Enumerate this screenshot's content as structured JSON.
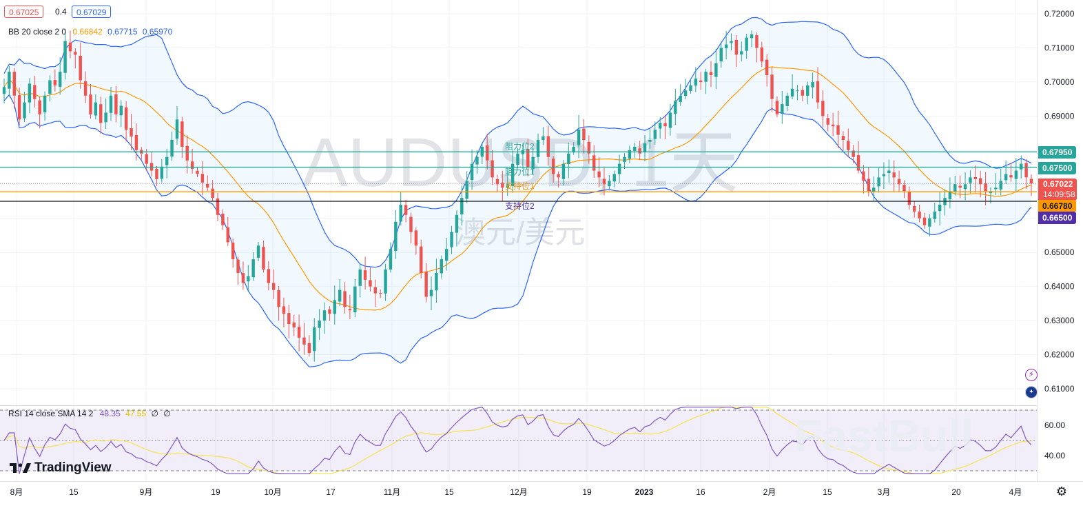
{
  "header": {
    "bid": "0.67025",
    "spread": "0.4",
    "ask": "0.67029",
    "bb_label": "BB 20 close 2 0",
    "bb_basis": "0.66842",
    "bb_upper": "0.67715",
    "bb_lower": "0.65970",
    "rsi_label": "RSI 14 close SMA 14 2",
    "rsi_value": "48.35",
    "rsi_sma": "47.55",
    "rsi_extra1": "∅",
    "rsi_extra2": "∅"
  },
  "watermark": {
    "symbol": "AUDUSD, 1天",
    "name": "澳元/美元",
    "brand": "FastBull",
    "logo_text": "TradingView"
  },
  "price_tags": {
    "level_6795": "0.67950",
    "level_6750": "0.67500",
    "last_price": "0.67022",
    "countdown": "14:09:58",
    "level_6678": "0.66780",
    "level_6650": "0.66500"
  },
  "level_labels": {
    "r2": "阻力位2",
    "r1": "阻力位1",
    "s1": "支持位1",
    "s2": "支持位2"
  },
  "colors": {
    "up": "#26a69a",
    "down": "#ef5350",
    "band": "#2962ff",
    "basis": "#ff9800",
    "level_cyan": "#26a69a",
    "rsi": "#7e57c2",
    "rsi_sma": "#f5e35b"
  },
  "chart_data": [
    {
      "type": "candlestick",
      "title": "AUDUSD, 1天",
      "subtitle": "澳元/美元",
      "x_ticks": [
        "8月",
        "15",
        "9月",
        "19",
        "10月",
        "17",
        "11月",
        "15",
        "12月",
        "19",
        "2023",
        "16",
        "2月",
        "15",
        "3月",
        "20",
        "4月"
      ],
      "y_ticks": [
        "0.72000",
        "0.71000",
        "0.70000",
        "0.69000",
        "0.68000",
        "0.67000",
        "0.66000",
        "0.65000",
        "0.64000",
        "0.63000",
        "0.62000",
        "0.61000"
      ],
      "ylim": [
        0.6055,
        0.7215
      ],
      "horizontal_levels": [
        {
          "value": 0.6795,
          "label": "阻力位2"
        },
        {
          "value": 0.675,
          "label": "阻力位1"
        },
        {
          "value": 0.6678,
          "label": "支持位1"
        },
        {
          "value": 0.665,
          "label": "支持位2"
        }
      ],
      "close_series": [
        0.6985,
        0.703,
        0.696,
        0.689,
        0.694,
        0.6995,
        0.695,
        0.6905,
        0.696,
        0.7005,
        0.699,
        0.703,
        0.712,
        0.709,
        0.708,
        0.7005,
        0.696,
        0.6905,
        0.694,
        0.688,
        0.691,
        0.696,
        0.6905,
        0.693,
        0.686,
        0.684,
        0.68,
        0.679,
        0.676,
        0.674,
        0.6715,
        0.675,
        0.678,
        0.683,
        0.689,
        0.681,
        0.677,
        0.6745,
        0.673,
        0.6705,
        0.669,
        0.666,
        0.661,
        0.658,
        0.653,
        0.648,
        0.644,
        0.641,
        0.643,
        0.648,
        0.652,
        0.645,
        0.641,
        0.639,
        0.634,
        0.632,
        0.629,
        0.628,
        0.625,
        0.623,
        0.6205,
        0.628,
        0.63,
        0.633,
        0.632,
        0.636,
        0.639,
        0.634,
        0.633,
        0.64,
        0.645,
        0.642,
        0.64,
        0.638,
        0.638,
        0.645,
        0.651,
        0.659,
        0.664,
        0.661,
        0.656,
        0.652,
        0.644,
        0.637,
        0.639,
        0.644,
        0.648,
        0.651,
        0.656,
        0.661,
        0.666,
        0.671,
        0.676,
        0.678,
        0.681,
        0.677,
        0.672,
        0.67,
        0.669,
        0.67,
        0.676,
        0.679,
        0.68,
        0.675,
        0.678,
        0.683,
        0.684,
        0.678,
        0.673,
        0.672,
        0.676,
        0.679,
        0.681,
        0.686,
        0.683,
        0.679,
        0.674,
        0.672,
        0.67,
        0.671,
        0.673,
        0.676,
        0.678,
        0.68,
        0.681,
        0.679,
        0.682,
        0.683,
        0.686,
        0.688,
        0.687,
        0.691,
        0.6945,
        0.696,
        0.6975,
        0.699,
        0.701,
        0.7,
        0.703,
        0.702,
        0.7055,
        0.71,
        0.711,
        0.712,
        0.708,
        0.709,
        0.713,
        0.714,
        0.71,
        0.706,
        0.702,
        0.695,
        0.6905,
        0.6935,
        0.696,
        0.698,
        0.6975,
        0.696,
        0.699,
        0.7,
        0.694,
        0.69,
        0.6875,
        0.687,
        0.6845,
        0.683,
        0.68,
        0.678,
        0.674,
        0.671,
        0.668,
        0.669,
        0.672,
        0.673,
        0.674,
        0.672,
        0.67,
        0.668,
        0.664,
        0.662,
        0.66,
        0.658,
        0.66,
        0.662,
        0.664,
        0.666,
        0.668,
        0.67,
        0.669,
        0.67,
        0.672,
        0.6715,
        0.67,
        0.668,
        0.668,
        0.669,
        0.671,
        0.673,
        0.672,
        0.674,
        0.676,
        0.672,
        0.6702
      ],
      "bollinger": {
        "length": 20,
        "stddev": 2,
        "basis_last": 0.66842,
        "upper_last": 0.67715,
        "lower_last": 0.6597
      }
    },
    {
      "type": "line",
      "title": "RSI 14 close SMA 14 2",
      "y_ticks": [
        "60.00",
        "40.00"
      ],
      "ylim": [
        30,
        70
      ],
      "reference_lines": [
        70,
        50,
        30
      ],
      "series": [
        {
          "name": "RSI",
          "last": 48.35
        },
        {
          "name": "SMA",
          "last": 47.55
        }
      ]
    }
  ]
}
